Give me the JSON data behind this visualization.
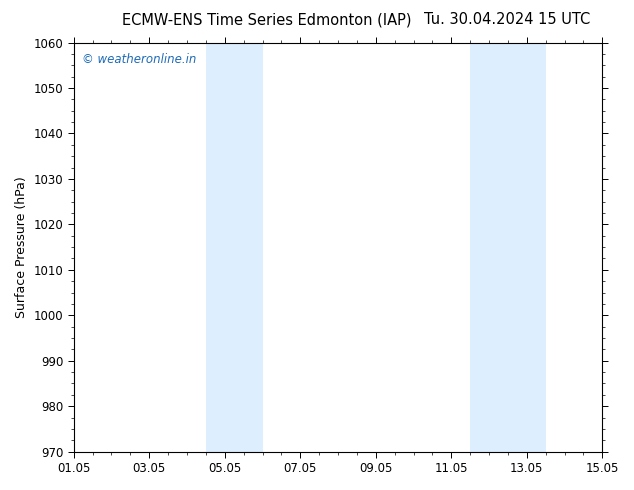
{
  "title_left": "ECMW-ENS Time Series Edmonton (IAP)",
  "title_right": "Tu. 30.04.2024 15 UTC",
  "ylabel": "Surface Pressure (hPa)",
  "ylim": [
    970,
    1060
  ],
  "yticks": [
    970,
    980,
    990,
    1000,
    1010,
    1020,
    1030,
    1040,
    1050,
    1060
  ],
  "xtick_labels": [
    "01.05",
    "03.05",
    "05.05",
    "07.05",
    "09.05",
    "11.05",
    "13.05",
    "15.05"
  ],
  "xtick_positions": [
    0,
    2,
    4,
    6,
    8,
    10,
    12,
    14
  ],
  "xlim": [
    0,
    14
  ],
  "shaded_regions": [
    {
      "start": 3.5,
      "end": 5.0
    },
    {
      "start": 10.5,
      "end": 11.5
    },
    {
      "start": 11.5,
      "end": 12.5
    }
  ],
  "shade_color": "#ddeeff",
  "background_color": "#ffffff",
  "watermark": "© weatheronline.in",
  "watermark_color": "#1e6bb8",
  "title_fontsize": 10.5,
  "axis_label_fontsize": 9,
  "tick_fontsize": 8.5,
  "watermark_fontsize": 8.5
}
